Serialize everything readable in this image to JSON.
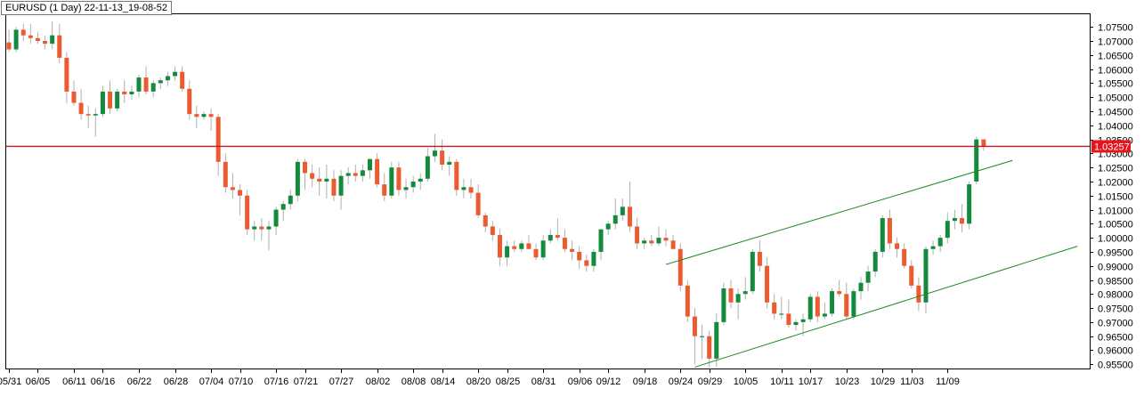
{
  "chart_data": {
    "type": "candlestick",
    "title": "EURUSD (1 Day) 22-11-13_19-08-52",
    "colors": {
      "up": "#138a3c",
      "down": "#ee5a2f",
      "wick": "#b0b0b0",
      "resistance": "#c8191e",
      "channel": "#1f8a1f",
      "last_price_bg": "#e8141b"
    },
    "y_range": [
      0.9535,
      1.0795
    ],
    "y_ticks": [
      "1.07500",
      "1.07000",
      "1.06500",
      "1.06000",
      "1.05500",
      "1.05000",
      "1.04500",
      "1.04000",
      "1.03500",
      "1.03000",
      "1.02500",
      "1.02000",
      "1.01500",
      "1.01000",
      "1.00500",
      "1.00000",
      "0.99500",
      "0.99000",
      "0.98500",
      "0.98000",
      "0.97500",
      "0.97000",
      "0.96500",
      "0.96000",
      "0.95500"
    ],
    "x_tick_labels": [
      "05/31",
      "06/05",
      "06/11",
      "06/16",
      "06/22",
      "06/28",
      "07/04",
      "07/10",
      "07/16",
      "07/21",
      "07/27",
      "08/02",
      "08/08",
      "08/14",
      "08/20",
      "08/25",
      "08/31",
      "09/06",
      "09/12",
      "09/18",
      "09/24",
      "09/29",
      "10/05",
      "10/11",
      "10/17",
      "10/23",
      "10/29",
      "11/03",
      "11/09"
    ],
    "x_tick_index": [
      0,
      4,
      9,
      13,
      18,
      23,
      28,
      32,
      37,
      41,
      46,
      51,
      56,
      60,
      65,
      69,
      74,
      79,
      83,
      88,
      93,
      97,
      102,
      107,
      111,
      116,
      121,
      125,
      130
    ],
    "resistance_level": 1.0325,
    "last_price_label": "1.03257",
    "channel_upper": {
      "start": [
        91,
        0.9905
      ],
      "end": [
        139,
        1.0275
      ]
    },
    "channel_lower": {
      "start": [
        95,
        0.954
      ],
      "end": [
        148,
        0.997
      ]
    },
    "candles": [
      [
        1.0695,
        1.074,
        1.066,
        1.067
      ],
      [
        1.067,
        1.075,
        1.066,
        1.074
      ],
      [
        1.074,
        1.076,
        1.07,
        1.072
      ],
      [
        1.072,
        1.076,
        1.069,
        1.071
      ],
      [
        1.071,
        1.073,
        1.069,
        1.07
      ],
      [
        1.07,
        1.072,
        1.067,
        1.069
      ],
      [
        1.069,
        1.077,
        1.067,
        1.072
      ],
      [
        1.072,
        1.076,
        1.062,
        1.064
      ],
      [
        1.064,
        1.066,
        1.048,
        1.052
      ],
      [
        1.052,
        1.056,
        1.047,
        1.048
      ],
      [
        1.048,
        1.053,
        1.042,
        1.044
      ],
      [
        1.044,
        1.047,
        1.039,
        1.0435
      ],
      [
        1.0435,
        1.046,
        1.036,
        1.044
      ],
      [
        1.044,
        1.054,
        1.043,
        1.052
      ],
      [
        1.052,
        1.056,
        1.044,
        1.046
      ],
      [
        1.046,
        1.053,
        1.045,
        1.052
      ],
      [
        1.052,
        1.056,
        1.048,
        1.051
      ],
      [
        1.051,
        1.054,
        1.049,
        1.052
      ],
      [
        1.052,
        1.058,
        1.05,
        1.057
      ],
      [
        1.057,
        1.061,
        1.051,
        1.052
      ],
      [
        1.052,
        1.056,
        1.05,
        1.055
      ],
      [
        1.055,
        1.057,
        1.053,
        1.056
      ],
      [
        1.056,
        1.059,
        1.054,
        1.0575
      ],
      [
        1.0575,
        1.061,
        1.056,
        1.059
      ],
      [
        1.059,
        1.061,
        1.052,
        1.053
      ],
      [
        1.053,
        1.056,
        1.042,
        1.044
      ],
      [
        1.044,
        1.047,
        1.039,
        1.043
      ],
      [
        1.043,
        1.045,
        1.042,
        1.044
      ],
      [
        1.044,
        1.046,
        1.038,
        1.043
      ],
      [
        1.043,
        1.044,
        1.022,
        1.027
      ],
      [
        1.027,
        1.03,
        1.016,
        1.018
      ],
      [
        1.018,
        1.023,
        1.014,
        1.017
      ],
      [
        1.017,
        1.019,
        1.008,
        1.015
      ],
      [
        1.015,
        1.017,
        1.001,
        1.003
      ],
      [
        1.003,
        1.006,
        0.999,
        1.004
      ],
      [
        1.004,
        1.007,
        0.999,
        1.003
      ],
      [
        1.003,
        1.006,
        0.9955,
        1.004
      ],
      [
        1.004,
        1.011,
        1.001,
        1.01
      ],
      [
        1.01,
        1.013,
        1.006,
        1.012
      ],
      [
        1.012,
        1.017,
        1.01,
        1.015
      ],
      [
        1.015,
        1.028,
        1.013,
        1.027
      ],
      [
        1.027,
        1.028,
        1.017,
        1.023
      ],
      [
        1.023,
        1.026,
        1.018,
        1.021
      ],
      [
        1.021,
        1.025,
        1.015,
        1.02
      ],
      [
        1.02,
        1.026,
        1.014,
        1.021
      ],
      [
        1.021,
        1.024,
        1.013,
        1.015
      ],
      [
        1.015,
        1.024,
        1.01,
        1.022
      ],
      [
        1.022,
        1.025,
        1.019,
        1.023
      ],
      [
        1.023,
        1.026,
        1.02,
        1.022
      ],
      [
        1.022,
        1.026,
        1.02,
        1.024
      ],
      [
        1.024,
        1.028,
        1.021,
        1.028
      ],
      [
        1.028,
        1.03,
        1.018,
        1.019
      ],
      [
        1.019,
        1.023,
        1.013,
        1.015
      ],
      [
        1.015,
        1.027,
        1.014,
        1.025
      ],
      [
        1.025,
        1.027,
        1.015,
        1.017
      ],
      [
        1.017,
        1.021,
        1.014,
        1.018
      ],
      [
        1.018,
        1.022,
        1.016,
        1.02
      ],
      [
        1.02,
        1.023,
        1.017,
        1.021
      ],
      [
        1.021,
        1.032,
        1.02,
        1.029
      ],
      [
        1.029,
        1.037,
        1.027,
        1.031
      ],
      [
        1.031,
        1.035,
        1.024,
        1.026
      ],
      [
        1.026,
        1.029,
        1.022,
        1.027
      ],
      [
        1.027,
        1.028,
        1.015,
        1.017
      ],
      [
        1.017,
        1.021,
        1.014,
        1.018
      ],
      [
        1.018,
        1.021,
        1.014,
        1.016
      ],
      [
        1.016,
        1.019,
        1.007,
        1.008
      ],
      [
        1.008,
        1.009,
        1.002,
        1.004
      ],
      [
        1.004,
        1.006,
        0.999,
        1.001
      ],
      [
        1.001,
        1.003,
        0.99,
        0.993
      ],
      [
        0.993,
        0.999,
        0.99,
        0.997
      ],
      [
        0.997,
        0.999,
        0.995,
        0.996
      ],
      [
        0.996,
        0.999,
        0.995,
        0.998
      ],
      [
        0.998,
        1.001,
        0.996,
        0.996
      ],
      [
        0.996,
        0.998,
        0.992,
        0.993
      ],
      [
        0.993,
        1.001,
        0.992,
        0.999
      ],
      [
        0.999,
        1.003,
        0.998,
        1.001
      ],
      [
        1.001,
        1.007,
        0.999,
        1.0
      ],
      [
        1.0,
        1.003,
        0.995,
        0.996
      ],
      [
        0.996,
        0.999,
        0.992,
        0.995
      ],
      [
        0.995,
        0.997,
        0.989,
        0.992
      ],
      [
        0.992,
        0.994,
        0.988,
        0.99
      ],
      [
        0.99,
        0.996,
        0.988,
        0.995
      ],
      [
        0.995,
        1.003,
        0.992,
        1.003
      ],
      [
        1.003,
        1.006,
        1.001,
        1.005
      ],
      [
        1.005,
        1.014,
        1.003,
        1.008
      ],
      [
        1.008,
        1.014,
        1.006,
        1.011
      ],
      [
        1.011,
        1.02,
        1.002,
        1.004
      ],
      [
        1.004,
        1.007,
        0.996,
        0.998
      ],
      [
        0.998,
        1.0,
        0.996,
        0.999
      ],
      [
        0.999,
        1.001,
        0.997,
        0.998
      ],
      [
        0.998,
        1.004,
        0.997,
        1.0
      ],
      [
        1.0,
        1.003,
        0.997,
        0.999
      ],
      [
        0.999,
        1.001,
        0.996,
        0.996
      ],
      [
        0.996,
        0.998,
        0.981,
        0.983
      ],
      [
        0.983,
        0.985,
        0.97,
        0.972
      ],
      [
        0.972,
        0.975,
        0.955,
        0.965
      ],
      [
        0.965,
        0.969,
        0.957,
        0.965
      ],
      [
        0.965,
        0.967,
        0.954,
        0.957
      ],
      [
        0.957,
        0.973,
        0.954,
        0.97
      ],
      [
        0.97,
        0.984,
        0.969,
        0.982
      ],
      [
        0.982,
        0.985,
        0.975,
        0.977
      ],
      [
        0.977,
        0.982,
        0.971,
        0.98
      ],
      [
        0.98,
        0.986,
        0.978,
        0.981
      ],
      [
        0.981,
        0.996,
        0.98,
        0.995
      ],
      [
        0.995,
        0.999,
        0.988,
        0.99
      ],
      [
        0.99,
        0.993,
        0.975,
        0.977
      ],
      [
        0.977,
        0.98,
        0.971,
        0.973
      ],
      [
        0.973,
        0.979,
        0.971,
        0.973
      ],
      [
        0.973,
        0.978,
        0.968,
        0.969
      ],
      [
        0.969,
        0.971,
        0.967,
        0.97
      ],
      [
        0.97,
        0.973,
        0.965,
        0.971
      ],
      [
        0.971,
        0.98,
        0.97,
        0.979
      ],
      [
        0.979,
        0.981,
        0.97,
        0.972
      ],
      [
        0.972,
        0.977,
        0.971,
        0.973
      ],
      [
        0.973,
        0.982,
        0.972,
        0.981
      ],
      [
        0.981,
        0.985,
        0.979,
        0.98
      ],
      [
        0.98,
        0.984,
        0.971,
        0.972
      ],
      [
        0.972,
        0.982,
        0.971,
        0.981
      ],
      [
        0.981,
        0.986,
        0.978,
        0.984
      ],
      [
        0.984,
        0.99,
        0.981,
        0.988
      ],
      [
        0.988,
        0.996,
        0.986,
        0.995
      ],
      [
        0.995,
        1.008,
        0.993,
        1.007
      ],
      [
        1.007,
        1.01,
        0.996,
        0.998
      ],
      [
        0.998,
        1.0,
        0.993,
        0.996
      ],
      [
        0.996,
        0.998,
        0.989,
        0.99
      ],
      [
        0.99,
        0.992,
        0.982,
        0.983
      ],
      [
        0.983,
        0.986,
        0.974,
        0.977
      ],
      [
        0.977,
        0.997,
        0.973,
        0.996
      ],
      [
        0.996,
        0.999,
        0.994,
        0.997
      ],
      [
        0.997,
        1.001,
        0.995,
        1.0
      ],
      [
        1.0,
        1.009,
        0.998,
        1.006
      ],
      [
        1.006,
        1.01,
        1.003,
        1.007
      ],
      [
        1.007,
        1.012,
        1.002,
        1.005
      ],
      [
        1.005,
        1.02,
        1.003,
        1.019
      ],
      [
        1.02,
        1.036,
        1.019,
        1.035
      ],
      [
        1.035,
        1.035,
        1.031,
        1.0325
      ]
    ]
  }
}
